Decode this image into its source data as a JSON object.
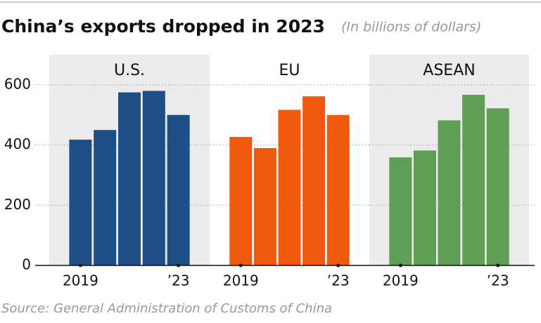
{
  "title": "China’s exports dropped in 2023",
  "subtitle": "(In billions of dollars)",
  "source": "Source: General Administration of Customs of China",
  "chart_data": [
    {
      "type": "bar",
      "title": "U.S.",
      "categories": [
        "2019",
        null,
        null,
        null,
        "’23"
      ],
      "values": [
        418,
        450,
        575,
        580,
        500
      ],
      "color": "#1f4e86",
      "background": "#ebebeb",
      "ylim": [
        0,
        700
      ],
      "yticks": [
        0,
        200,
        400,
        600
      ],
      "grid": true
    },
    {
      "type": "bar",
      "title": "EU",
      "categories": [
        "2019",
        null,
        null,
        null,
        "’23"
      ],
      "values": [
        427,
        390,
        517,
        562,
        500
      ],
      "color": "#f05a0f",
      "ylim": [
        0,
        700
      ],
      "yticks": [
        0,
        200,
        400,
        600
      ],
      "grid": true
    },
    {
      "type": "bar",
      "title": "ASEAN",
      "categories": [
        "2019",
        null,
        null,
        null,
        "’23"
      ],
      "values": [
        359,
        382,
        482,
        567,
        522
      ],
      "color": "#5f9e54",
      "background": "#ebebeb",
      "ylim": [
        0,
        700
      ],
      "yticks": [
        0,
        200,
        400,
        600
      ],
      "grid": true
    }
  ]
}
